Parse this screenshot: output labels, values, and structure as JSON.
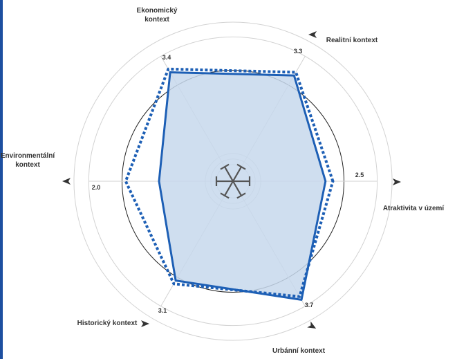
{
  "chart_data": {
    "type": "radar",
    "title": "",
    "axes": [
      {
        "label": "Atraktivita v území",
        "value": 2.5,
        "value_label": "2.5"
      },
      {
        "label": "Realitní kontext",
        "value": 3.3,
        "value_label": "3.3"
      },
      {
        "label": "Ekonomický kontext",
        "value": 3.4,
        "value_label": "3.4"
      },
      {
        "label": "Environmentální kontext",
        "value": 2.0,
        "value_label": "2.0"
      },
      {
        "label": "Historický kontext",
        "value": 3.1,
        "value_label": "3.1"
      },
      {
        "label": "Urbánní kontext",
        "value": 3.7,
        "value_label": "3.7"
      }
    ],
    "series": [
      {
        "style": "solid",
        "fill": true,
        "values": [
          2.5,
          3.3,
          3.4,
          2.0,
          3.1,
          3.7
        ]
      },
      {
        "style": "dotted",
        "fill": false,
        "values": [
          2.7,
          3.4,
          3.5,
          2.9,
          3.2,
          3.6
        ]
      }
    ],
    "rlim": [
      0,
      4.5
    ],
    "reference_ring": 3.0,
    "grid": true,
    "legend": "none"
  },
  "colors": {
    "series_line": "#1d5fb5",
    "series_fill": "#c7d8ec",
    "reference_ring": "#222222",
    "grid": "#d2d2d2",
    "text": "#333333",
    "edge_bar": "#1d4fa0"
  },
  "icons": {
    "center": "asterisk-target-icon",
    "axis_arrow": "arrow-triangle-icon"
  }
}
